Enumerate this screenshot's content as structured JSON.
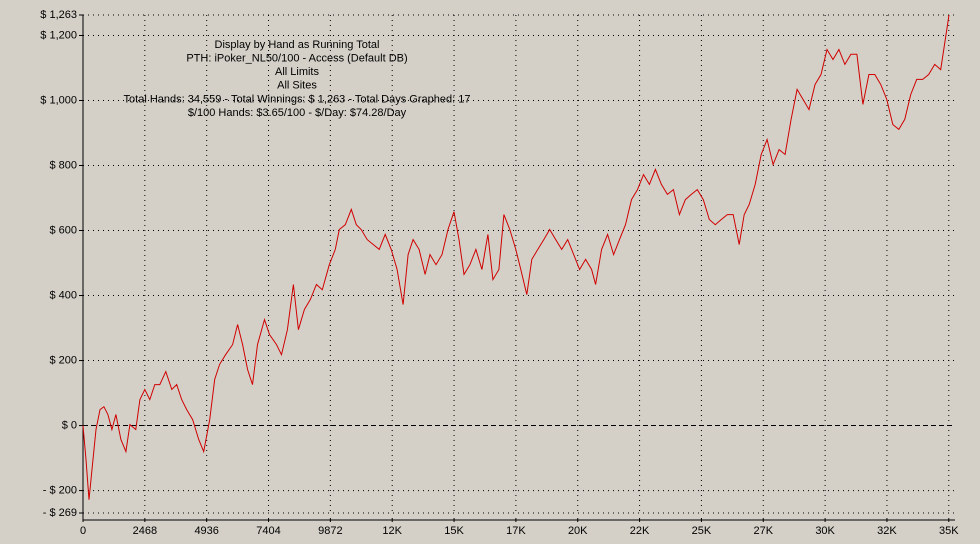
{
  "chart_data": {
    "type": "line",
    "annotations": [
      "Display by Hand as Running Total",
      "PTH: iPoker_NL50/100 - Access (Default DB)",
      "All Limits",
      "All Sites",
      "Total Hands: 34,559 - Total Winnings: $ 1,263 - Total Days Graphed: 17",
      "$/100 Hands: $3.65/100 - $/Day: $74.28/Day"
    ],
    "color": "#d00000",
    "grid": true,
    "xlim": [
      0,
      34800
    ],
    "ylim": [
      -269,
      1263
    ],
    "xticks": [
      0,
      2468,
      4936,
      7404,
      9872,
      {
        "value": 12340,
        "label": "12K"
      },
      {
        "value": 14808,
        "label": "15K"
      },
      {
        "value": 17276,
        "label": "17K"
      },
      {
        "value": 19744,
        "label": "20K"
      },
      {
        "value": 22212,
        "label": "22K"
      },
      {
        "value": 24680,
        "label": "25K"
      },
      {
        "value": 27148,
        "label": "27K"
      },
      {
        "value": 29616,
        "label": "30K"
      },
      {
        "value": 32084,
        "label": "32K"
      },
      {
        "value": 34552,
        "label": "35K"
      }
    ],
    "yticks": [
      {
        "value": -269,
        "label": "- $ 269"
      },
      {
        "value": -200,
        "label": "- $ 200"
      },
      {
        "value": 0,
        "label": "$ 0"
      },
      {
        "value": 200,
        "label": "$ 200"
      },
      {
        "value": 400,
        "label": "$ 400"
      },
      {
        "value": 600,
        "label": "$ 600"
      },
      {
        "value": 800,
        "label": "$ 800"
      },
      {
        "value": 1000,
        "label": "$ 1,000"
      },
      {
        "value": 1200,
        "label": "$ 1,200"
      },
      {
        "value": 1263,
        "label": "$ 1,263"
      }
    ],
    "x": [
      0,
      119,
      239,
      358,
      517,
      677,
      836,
      995,
      1154,
      1313,
      1512,
      1711,
      1871,
      2109,
      2269,
      2468,
      2667,
      2866,
      3065,
      3303,
      3542,
      3741,
      3940,
      4139,
      4378,
      4617,
      4816,
      5055,
      5254,
      5453,
      5691,
      5970,
      6169,
      6368,
      6567,
      6766,
      6965,
      7244,
      7443,
      7721,
      7920,
      8159,
      8398,
      8597,
      8836,
      9075,
      9314,
      9552,
      9831,
      10070,
      10229,
      10468,
      10707,
      10905,
      11104,
      11343,
      11582,
      11821,
      12060,
      12298,
      12537,
      12776,
      12975,
      13174,
      13413,
      13652,
      13850,
      14089,
      14328,
      14567,
      14806,
      15005,
      15204,
      15442,
      15681,
      15920,
      16159,
      16358,
      16597,
      16796,
      17034,
      17273,
      17472,
      17711,
      17910,
      18149,
      18388,
      18626,
      18865,
      19104,
      19343,
      19582,
      19820,
      20059,
      20298,
      20457,
      20696,
      20935,
      21174,
      21412,
      21651,
      21890,
      22129,
      22368,
      22606,
      22845,
      23084,
      23323,
      23562,
      23800,
      24039,
      24278,
      24517,
      24756,
      24994,
      25233,
      25472,
      25711,
      25950,
      26188,
      26387,
      26586,
      26825,
      27064,
      27303,
      27542,
      27780,
      28019,
      28258,
      28497,
      28736,
      28974,
      29213,
      29452,
      29691,
      29930,
      30168,
      30407,
      30646,
      30885,
      31124,
      31362,
      31601,
      31840,
      32079,
      32318,
      32556,
      32795,
      33034,
      33273,
      33512,
      33750,
      33989,
      34228,
      34559
    ],
    "values": [
      0,
      -105,
      -228,
      -135,
      -12,
      49,
      58,
      34,
      -12,
      34,
      -43,
      -80,
      3,
      -12,
      80,
      111,
      80,
      126,
      126,
      166,
      111,
      126,
      80,
      49,
      18,
      -43,
      -80,
      18,
      142,
      188,
      218,
      249,
      311,
      249,
      172,
      126,
      249,
      326,
      280,
      249,
      218,
      295,
      434,
      295,
      357,
      388,
      434,
      418,
      495,
      542,
      603,
      618,
      665,
      618,
      603,
      572,
      557,
      542,
      588,
      542,
      480,
      372,
      526,
      572,
      542,
      465,
      526,
      495,
      526,
      603,
      658,
      572,
      465,
      495,
      542,
      480,
      588,
      449,
      480,
      649,
      603,
      542,
      480,
      403,
      511,
      542,
      572,
      603,
      572,
      542,
      572,
      526,
      480,
      511,
      480,
      434,
      542,
      588,
      526,
      572,
      618,
      695,
      726,
      772,
      742,
      788,
      742,
      711,
      726,
      649,
      695,
      711,
      726,
      695,
      634,
      618,
      634,
      649,
      649,
      557,
      649,
      680,
      742,
      834,
      880,
      803,
      849,
      834,
      942,
      1034,
      1003,
      972,
      1049,
      1080,
      1157,
      1126,
      1157,
      1111,
      1142,
      1142,
      988,
      1080,
      1080,
      1049,
      1003,
      926,
      911,
      942,
      1018,
      1065,
      1065,
      1080,
      1111,
      1095,
      1263
    ]
  }
}
